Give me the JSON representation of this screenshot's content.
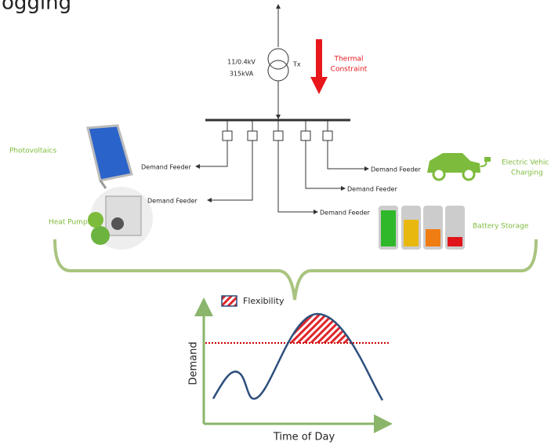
{
  "header": {
    "title": "ogging"
  },
  "transformer": {
    "rating": [
      "11/0.4kV",
      "315kVA"
    ],
    "label": "Tx"
  },
  "constraint": {
    "label": [
      "Thermal",
      "Constraint"
    ]
  },
  "feeders": [
    {
      "label": "Demand Feeder"
    },
    {
      "label": "Demand Feeder"
    },
    {
      "label": "Demand Feeder"
    },
    {
      "label": "Demand Feeder"
    },
    {
      "label": "Demand Feeder"
    }
  ],
  "technologies": {
    "photovoltaics": "Photovoltaics",
    "heat_pumps": "Heat Pumps",
    "ev": [
      "Electric Vehic",
      "Charging"
    ],
    "battery": "Battery Storage"
  },
  "chart": {
    "legend": "Flexibility",
    "y_label": "Demand",
    "x_label": "Time of Day"
  }
}
